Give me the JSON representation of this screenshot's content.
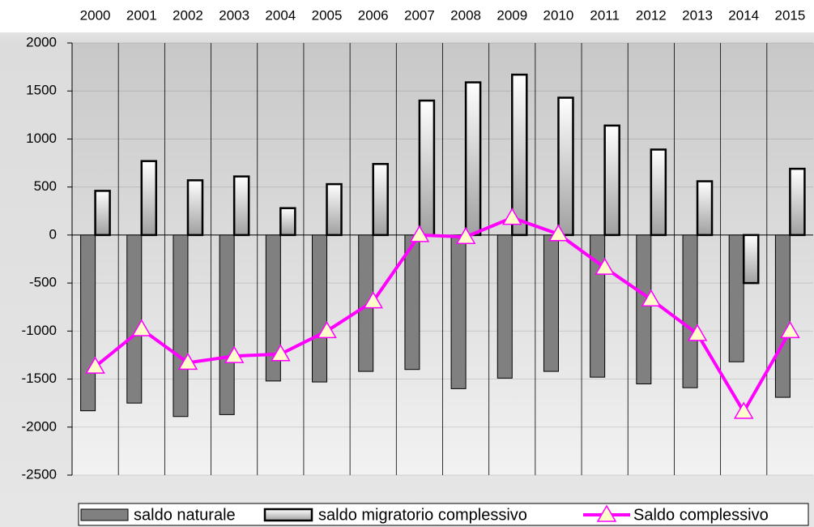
{
  "chart_data": {
    "type": "bar_line",
    "categories": [
      "2000",
      "2001",
      "2002",
      "2003",
      "2004",
      "2005",
      "2006",
      "2007",
      "2008",
      "2009",
      "2010",
      "2011",
      "2012",
      "2013",
      "2014",
      "2015"
    ],
    "series": [
      {
        "name": "saldo naturale",
        "type": "bar",
        "color": "#808080",
        "values": [
          -1830,
          -1750,
          -1890,
          -1870,
          -1520,
          -1530,
          -1420,
          -1400,
          -1600,
          -1490,
          -1420,
          -1480,
          -1550,
          -1590,
          -1320,
          -1690
        ]
      },
      {
        "name": "saldo migratorio complessivo",
        "type": "bar",
        "color": "#e8e8e8",
        "values": [
          460,
          770,
          570,
          610,
          280,
          530,
          740,
          1400,
          1590,
          1670,
          1430,
          1140,
          890,
          560,
          -500,
          690
        ]
      },
      {
        "name": "Saldo complessivo",
        "type": "line",
        "color": "#ff00ff",
        "values": [
          -1370,
          -980,
          -1330,
          -1260,
          -1240,
          -1000,
          -690,
          0,
          -20,
          180,
          10,
          -340,
          -670,
          -1030,
          -1840,
          -1000
        ]
      }
    ],
    "ylim": [
      -2500,
      2000
    ],
    "yticks": [
      -2500,
      -2000,
      -1500,
      -1000,
      -500,
      0,
      500,
      1000,
      1500,
      2000
    ],
    "grid": true,
    "legend": "bottom"
  }
}
